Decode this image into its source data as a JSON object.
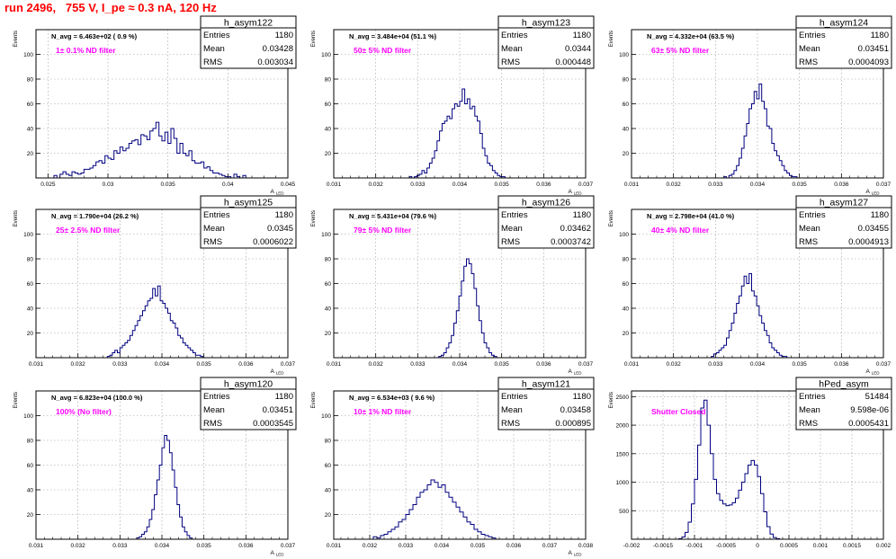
{
  "page_title": "run 2496,   755 V, I_pe ≈ 0.3 nA, 120 Hz",
  "colors": {
    "title": "#ff0000",
    "hist": "#000080",
    "annotation": "#ff00ff",
    "frame": "#000000",
    "grid": "#999999"
  },
  "chart_data": [
    {
      "type": "histogram",
      "name": "h_asym122",
      "title": "N_avg = 6.463e+02 ( 0.9 %)",
      "annotation": "1± 0.1% ND filter",
      "stats": {
        "entries_label": "Entries",
        "entries": "1180",
        "mean_label": "Mean",
        "mean": "0.03428",
        "rms_label": "RMS",
        "rms": "0.003034"
      },
      "ylabel": "Events",
      "xlabel": "A_LED",
      "xlim": [
        0.024,
        0.045
      ],
      "ylim": [
        0,
        120
      ],
      "xticks": [
        "0.025",
        "0.03",
        "0.035",
        "0.04",
        "0.045"
      ],
      "xtick_values": [
        0.025,
        0.03,
        0.035,
        0.04,
        0.045
      ],
      "yticks": [
        "20",
        "40",
        "60",
        "80",
        "100"
      ],
      "ytick_values": [
        20,
        40,
        60,
        80,
        100
      ],
      "bin_start": 0.0255,
      "bin_width": 0.00025,
      "counts": [
        2,
        0,
        3,
        5,
        3,
        2,
        5,
        4,
        3,
        4,
        7,
        7,
        8,
        10,
        13,
        14,
        12,
        18,
        16,
        15,
        22,
        20,
        25,
        22,
        24,
        28,
        30,
        31,
        27,
        35,
        34,
        31,
        38,
        40,
        45,
        34,
        30,
        37,
        28,
        40,
        32,
        20,
        28,
        20,
        18,
        22,
        14,
        12,
        12,
        13,
        8,
        9,
        6,
        4,
        4,
        3,
        2,
        1,
        1,
        0,
        3,
        1,
        0,
        2
      ]
    },
    {
      "type": "histogram",
      "name": "h_asym123",
      "title": "N_avg = 3.484e+04 (51.1 %)",
      "annotation": "50± 5% ND filter",
      "stats": {
        "entries_label": "Entries",
        "entries": "1180",
        "mean_label": "Mean",
        "mean": "0.0344",
        "rms_label": "RMS",
        "rms": "0.000448"
      },
      "ylabel": "Events",
      "xlabel": "A_LED",
      "xlim": [
        0.031,
        0.037
      ],
      "ylim": [
        0,
        120
      ],
      "xticks": [
        "0.031",
        "0.032",
        "0.033",
        "0.034",
        "0.035",
        "0.036",
        "0.037"
      ],
      "xtick_values": [
        0.031,
        0.032,
        0.033,
        0.034,
        0.035,
        0.036,
        0.037
      ],
      "yticks": [
        "20",
        "40",
        "60",
        "80",
        "100"
      ],
      "ytick_values": [
        20,
        40,
        60,
        80,
        100
      ],
      "bin_start": 0.0328,
      "bin_width": 6e-05,
      "counts": [
        1,
        0,
        1,
        2,
        3,
        6,
        4,
        8,
        12,
        16,
        22,
        30,
        38,
        44,
        46,
        50,
        48,
        56,
        60,
        58,
        62,
        72,
        60,
        64,
        56,
        58,
        50,
        46,
        36,
        24,
        18,
        12,
        10,
        6,
        4,
        2,
        1,
        1
      ]
    },
    {
      "type": "histogram",
      "name": "h_asym124",
      "title": "N_avg = 4.332e+04 (63.5 %)",
      "annotation": "63± 5% ND filter",
      "stats": {
        "entries_label": "Entries",
        "entries": "1180",
        "mean_label": "Mean",
        "mean": "0.03451",
        "rms_label": "RMS",
        "rms": "0.0004093"
      },
      "ylabel": "Events",
      "xlabel": "A_LED",
      "xlim": [
        0.031,
        0.037
      ],
      "ylim": [
        0,
        120
      ],
      "xticks": [
        "0.031",
        "0.032",
        "0.033",
        "0.034",
        "0.035",
        "0.036",
        "0.037"
      ],
      "xtick_values": [
        0.031,
        0.032,
        0.033,
        0.034,
        0.035,
        0.036,
        0.037
      ],
      "yticks": [
        "20",
        "40",
        "60",
        "80",
        "100"
      ],
      "ytick_values": [
        20,
        40,
        60,
        80,
        100
      ],
      "bin_start": 0.0332,
      "bin_width": 6e-05,
      "counts": [
        1,
        0,
        2,
        3,
        6,
        10,
        16,
        24,
        34,
        44,
        56,
        60,
        70,
        64,
        76,
        62,
        56,
        42,
        40,
        28,
        22,
        18,
        14,
        10,
        6,
        4,
        2,
        1,
        1
      ]
    },
    {
      "type": "histogram",
      "name": "h_asym125",
      "title": "N_avg = 1.790e+04 (26.2 %)",
      "annotation": "25± 2.5% ND filter",
      "stats": {
        "entries_label": "Entries",
        "entries": "1180",
        "mean_label": "Mean",
        "mean": "0.0345",
        "rms_label": "RMS",
        "rms": "0.0006022"
      },
      "ylabel": "Events",
      "xlabel": "A_LED",
      "xlim": [
        0.031,
        0.037
      ],
      "ylim": [
        0,
        120
      ],
      "xticks": [
        "0.031",
        "0.032",
        "0.033",
        "0.034",
        "0.035",
        "0.036",
        "0.037"
      ],
      "xtick_values": [
        0.031,
        0.032,
        0.033,
        0.034,
        0.035,
        0.036,
        0.037
      ],
      "yticks": [
        "20",
        "40",
        "60",
        "80",
        "100"
      ],
      "ytick_values": [
        20,
        40,
        60,
        80,
        100
      ],
      "bin_start": 0.0327,
      "bin_width": 6e-05,
      "counts": [
        1,
        2,
        4,
        6,
        4,
        8,
        10,
        12,
        14,
        18,
        22,
        26,
        30,
        34,
        38,
        42,
        46,
        48,
        56,
        50,
        58,
        46,
        44,
        40,
        36,
        30,
        28,
        24,
        18,
        16,
        12,
        10,
        8,
        6,
        4,
        2,
        2,
        1
      ]
    },
    {
      "type": "histogram",
      "name": "h_asym126",
      "title": "N_avg = 5.431e+04 (79.6 %)",
      "annotation": "79± 5% ND filter",
      "stats": {
        "entries_label": "Entries",
        "entries": "1180",
        "mean_label": "Mean",
        "mean": "0.03462",
        "rms_label": "RMS",
        "rms": "0.0003742"
      },
      "ylabel": "Events",
      "xlabel": "A_LED",
      "xlim": [
        0.031,
        0.037
      ],
      "ylim": [
        0,
        120
      ],
      "xticks": [
        "0.031",
        "0.032",
        "0.033",
        "0.034",
        "0.035",
        "0.036",
        "0.037"
      ],
      "xtick_values": [
        0.031,
        0.032,
        0.033,
        0.034,
        0.035,
        0.036,
        0.037
      ],
      "yticks": [
        "20",
        "40",
        "60",
        "80",
        "100"
      ],
      "ytick_values": [
        20,
        40,
        60,
        80,
        100
      ],
      "bin_start": 0.0335,
      "bin_width": 6e-05,
      "counts": [
        1,
        2,
        4,
        8,
        12,
        18,
        28,
        38,
        50,
        62,
        74,
        80,
        76,
        68,
        56,
        42,
        30,
        20,
        12,
        8,
        4,
        2,
        1
      ]
    },
    {
      "type": "histogram",
      "name": "h_asym127",
      "title": "N_avg = 2.798e+04 (41.0 %)",
      "annotation": "40± 4% ND filter",
      "stats": {
        "entries_label": "Entries",
        "entries": "1180",
        "mean_label": "Mean",
        "mean": "0.03455",
        "rms_label": "RMS",
        "rms": "0.0004913"
      },
      "ylabel": "Events",
      "xlabel": "A_LED",
      "xlim": [
        0.031,
        0.037
      ],
      "ylim": [
        0,
        120
      ],
      "xticks": [
        "0.031",
        "0.032",
        "0.033",
        "0.034",
        "0.035",
        "0.036",
        "0.037"
      ],
      "xtick_values": [
        0.031,
        0.032,
        0.033,
        0.034,
        0.035,
        0.036,
        0.037
      ],
      "yticks": [
        "20",
        "40",
        "60",
        "80",
        "100"
      ],
      "ytick_values": [
        20,
        40,
        60,
        80,
        100
      ],
      "bin_start": 0.0329,
      "bin_width": 6e-05,
      "counts": [
        1,
        3,
        4,
        6,
        8,
        10,
        16,
        22,
        28,
        36,
        44,
        50,
        58,
        66,
        60,
        68,
        54,
        50,
        42,
        34,
        28,
        22,
        18,
        12,
        8,
        6,
        4,
        2,
        1,
        1
      ]
    },
    {
      "type": "histogram",
      "name": "h_asym120",
      "title": "N_avg = 6.823e+04 (100.0 %)",
      "annotation": "100% (No filter)",
      "stats": {
        "entries_label": "Entries",
        "entries": "1180",
        "mean_label": "Mean",
        "mean": "0.03451",
        "rms_label": "RMS",
        "rms": "0.0003545"
      },
      "ylabel": "Events",
      "xlabel": "A_LED",
      "xlim": [
        0.031,
        0.037
      ],
      "ylim": [
        0,
        120
      ],
      "xticks": [
        "0.031",
        "0.032",
        "0.033",
        "0.034",
        "0.035",
        "0.036",
        "0.037"
      ],
      "xtick_values": [
        0.031,
        0.032,
        0.033,
        0.034,
        0.035,
        0.036,
        0.037
      ],
      "yticks": [
        "20",
        "40",
        "60",
        "80",
        "100"
      ],
      "ytick_values": [
        20,
        40,
        60,
        80,
        100
      ],
      "bin_start": 0.0334,
      "bin_width": 6e-05,
      "counts": [
        1,
        2,
        4,
        6,
        10,
        16,
        24,
        36,
        48,
        60,
        74,
        84,
        80,
        70,
        56,
        42,
        28,
        18,
        10,
        6,
        3,
        1
      ]
    },
    {
      "type": "histogram",
      "name": "h_asym121",
      "title": "N_avg = 6.534e+03 ( 9.6 %)",
      "annotation": "10± 1% ND filter",
      "stats": {
        "entries_label": "Entries",
        "entries": "1180",
        "mean_label": "Mean",
        "mean": "0.03458",
        "rms_label": "RMS",
        "rms": "0.000895"
      },
      "ylabel": "Events",
      "xlabel": "A_LED",
      "xlim": [
        0.031,
        0.038
      ],
      "ylim": [
        0,
        120
      ],
      "xticks": [
        "0.031",
        "0.032",
        "0.033",
        "0.034",
        "0.035",
        "0.036",
        "0.037",
        "0.038"
      ],
      "xtick_values": [
        0.031,
        0.032,
        0.033,
        0.034,
        0.035,
        0.036,
        0.037,
        0.038
      ],
      "yticks": [
        "20",
        "40",
        "60",
        "80",
        "100"
      ],
      "ytick_values": [
        20,
        40,
        60,
        80,
        100
      ],
      "bin_start": 0.0321,
      "bin_width": 0.0001,
      "counts": [
        2,
        1,
        3,
        4,
        6,
        8,
        10,
        14,
        16,
        20,
        24,
        28,
        34,
        38,
        40,
        44,
        48,
        46,
        42,
        44,
        38,
        34,
        30,
        26,
        22,
        18,
        14,
        12,
        8,
        6,
        4,
        3,
        2,
        1
      ]
    },
    {
      "type": "histogram",
      "name": "hPed_asym",
      "title": "",
      "annotation": "Shutter Closed",
      "stats": {
        "entries_label": "Entries",
        "entries": "51484",
        "mean_label": "Mean",
        "mean": "9.598e-06",
        "rms_label": "RMS",
        "rms": "0.0005431"
      },
      "ylabel": "Events",
      "xlabel": "",
      "xlim": [
        -0.002,
        0.002
      ],
      "ylim": [
        0,
        2600
      ],
      "xticks": [
        "-0.002",
        "-0.0015",
        "-0.001",
        "-0.0005",
        "0",
        "0.0005",
        "0.001",
        "0.0015",
        "0.002"
      ],
      "xtick_values": [
        -0.002,
        -0.0015,
        -0.001,
        -0.0005,
        0,
        0.0005,
        0.001,
        0.0015,
        0.002
      ],
      "yticks": [
        "500",
        "1000",
        "1500",
        "2000",
        "2500"
      ],
      "ytick_values": [
        500,
        1000,
        1500,
        2000,
        2500
      ],
      "bin_start": -0.00125,
      "bin_width": 5e-05,
      "counts": [
        10,
        40,
        120,
        300,
        620,
        1050,
        1650,
        2300,
        2440,
        2000,
        1500,
        1050,
        800,
        680,
        620,
        590,
        600,
        640,
        720,
        860,
        1000,
        1150,
        1300,
        1380,
        1300,
        1100,
        800,
        480,
        220,
        90,
        30,
        10
      ]
    }
  ]
}
